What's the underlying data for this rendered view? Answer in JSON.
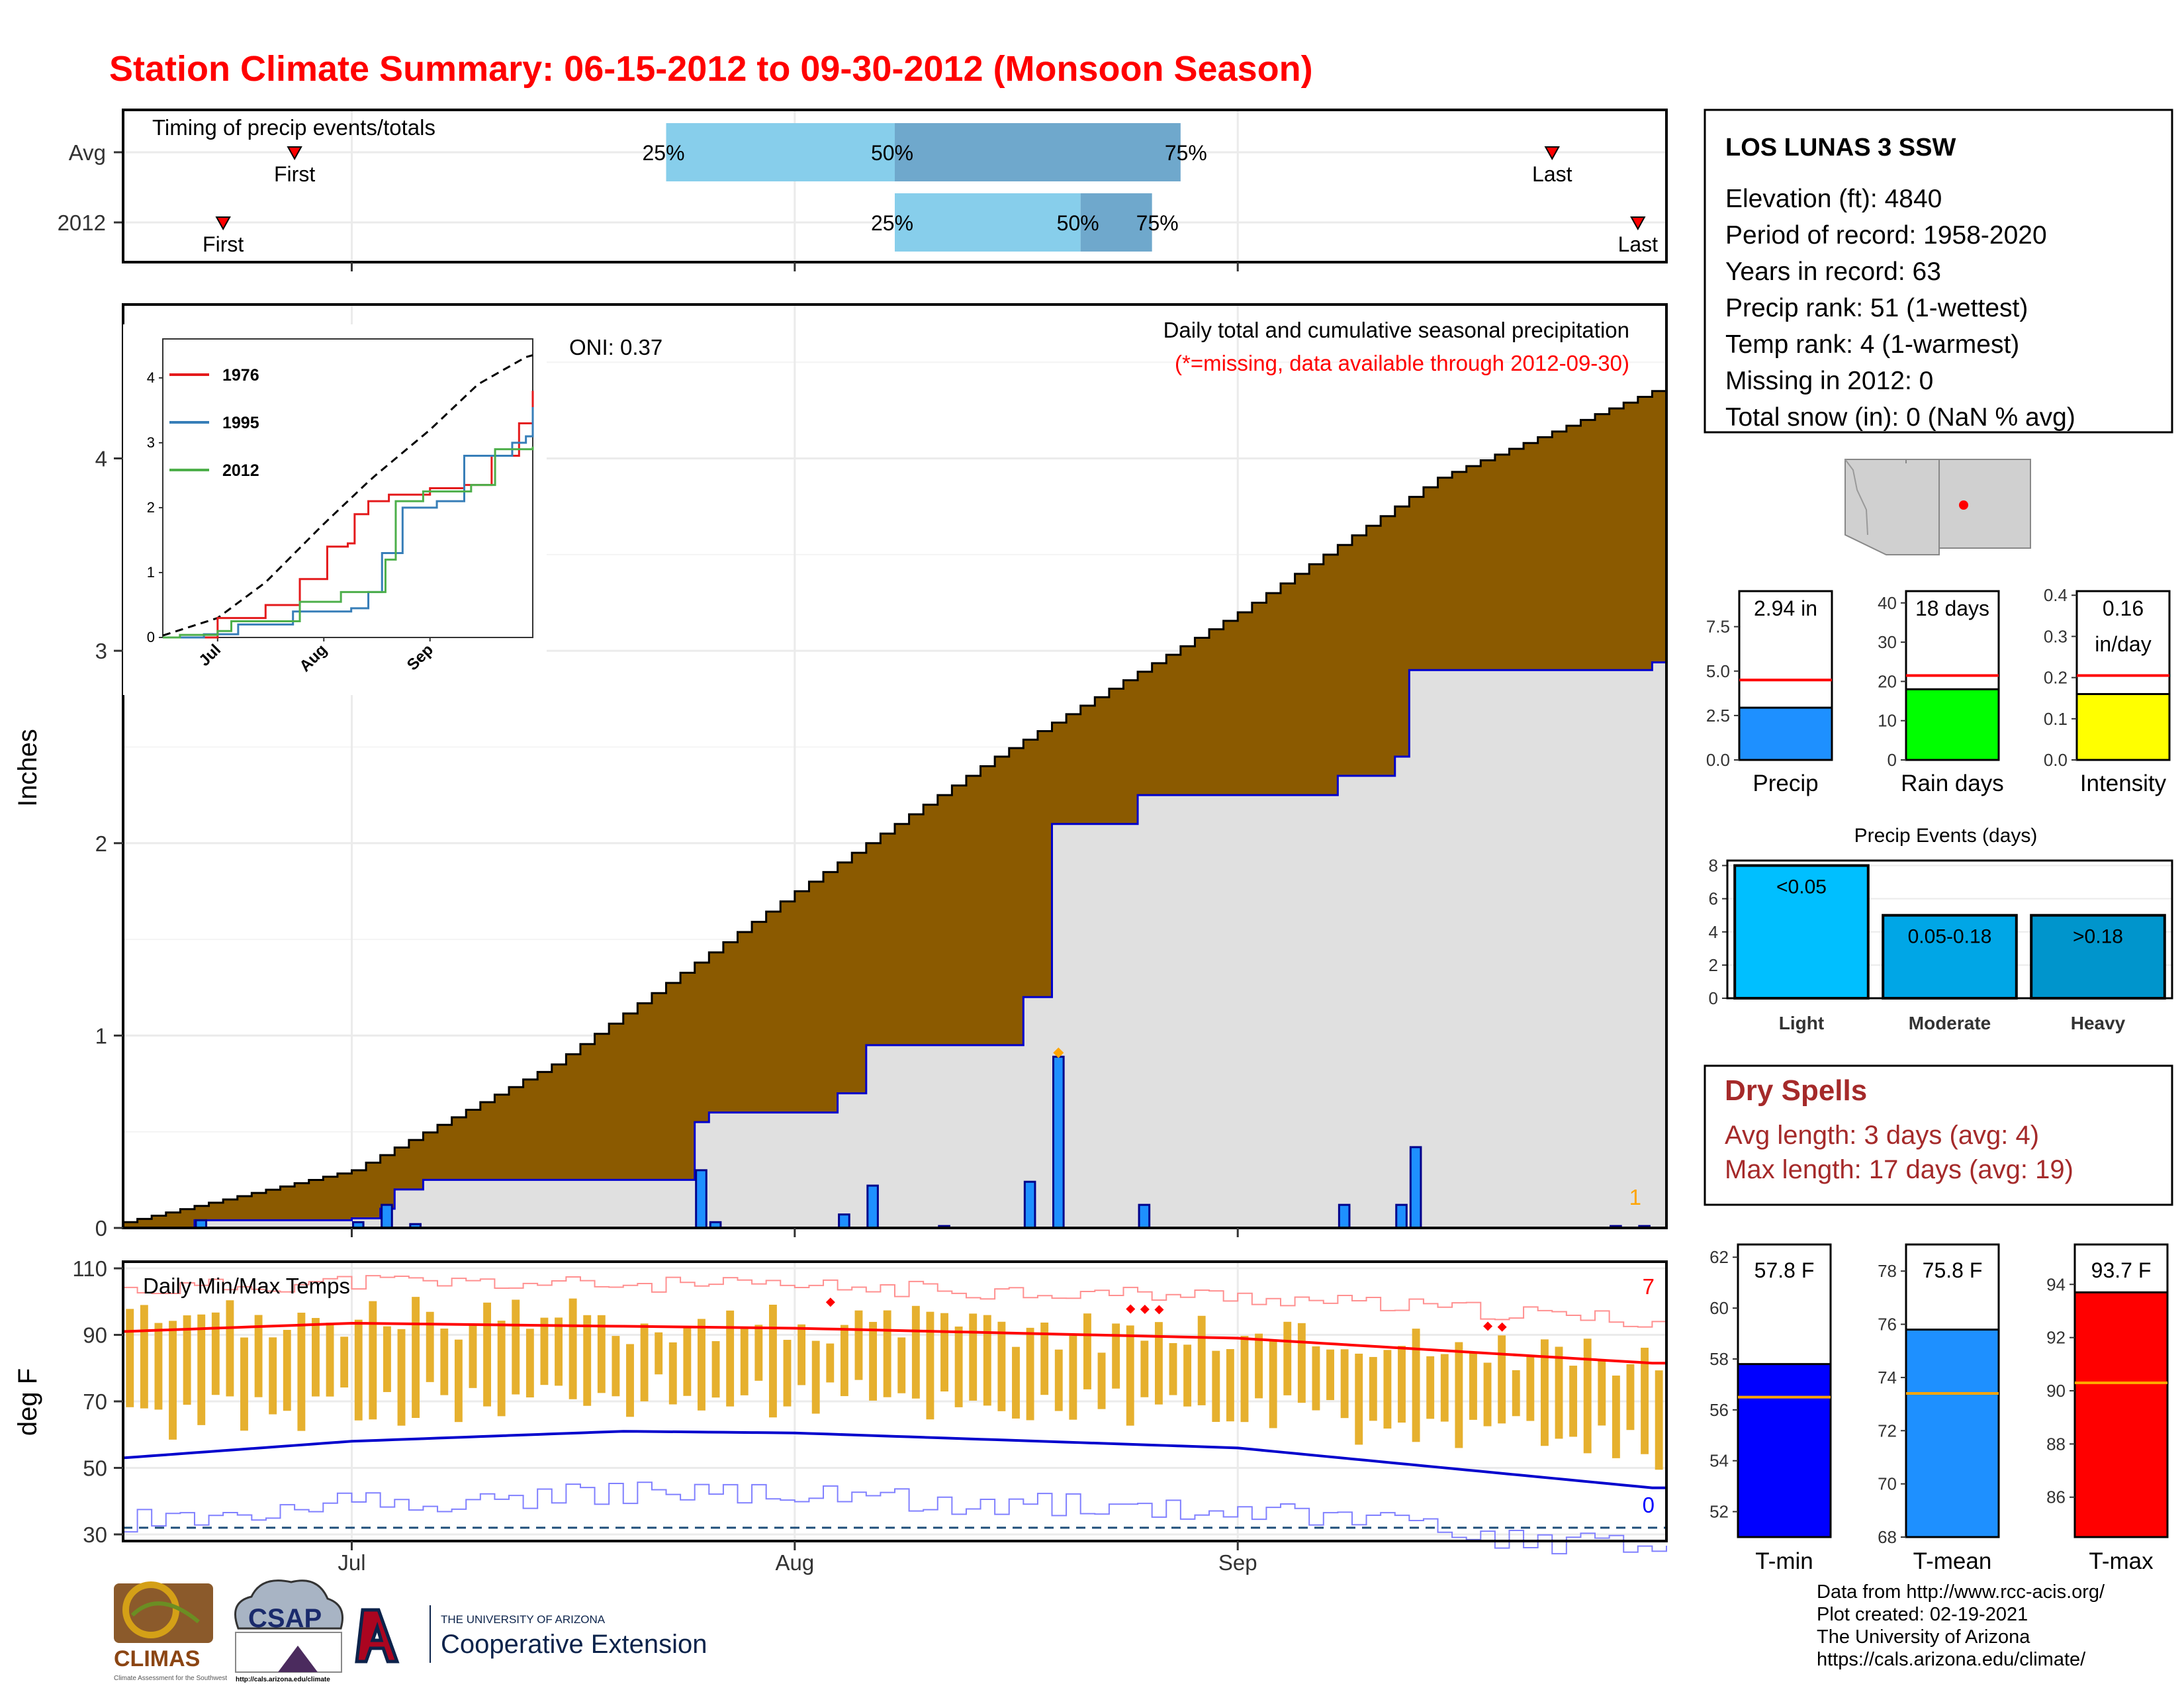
{
  "title": "Station Climate Summary: 06-15-2012 to 09-30-2012 (Monsoon Season)",
  "timing": {
    "label": "Timing of precip events/totals",
    "rows": [
      {
        "name": "Avg",
        "first_day": 12,
        "q25_day": 38,
        "q50_day": 54,
        "q75_day": 74,
        "last_day": 100,
        "first_label": "First",
        "last_label": "Last",
        "q25_label": "25%",
        "q50_label": "50%",
        "q75_label": "75%"
      },
      {
        "name": "2012",
        "first_day": 7,
        "q25_day": 54,
        "q50_day": 67,
        "q75_day": 72,
        "last_day": 106,
        "first_label": "First",
        "last_label": "Last",
        "q25_label": "25%",
        "q50_label": "50%",
        "q75_label": "75%"
      }
    ]
  },
  "month_ticks": [
    {
      "label": "Jul",
      "day": 16
    },
    {
      "label": "Aug",
      "day": 47
    },
    {
      "label": "Sep",
      "day": 78
    }
  ],
  "precip": {
    "ylabel": "Inches",
    "yticks": [
      0,
      1,
      2,
      3,
      4
    ],
    "ymax": 4.8,
    "oni": "ONI: 0.37",
    "caption": "Daily total and cumulative seasonal precipitation",
    "missing_note": "(*=missing, data available through 2012-09-30)",
    "missing_count": "1",
    "inset": {
      "yticks": [
        0,
        1,
        2,
        3,
        4
      ],
      "xticks": [
        "Jul",
        "Aug",
        "Sep"
      ],
      "legend": [
        {
          "name": "1976",
          "color": "#e41a1c"
        },
        {
          "name": "1995",
          "color": "#377eb8"
        },
        {
          "name": "2012",
          "color": "#4daf4a"
        }
      ]
    }
  },
  "temps": {
    "ylabel": "deg F",
    "label": "Daily Min/Max Temps",
    "yticks": [
      30,
      50,
      70,
      90,
      110
    ],
    "record_high_count": "7",
    "record_low_count": "0"
  },
  "station": {
    "name": "LOS LUNAS 3 SSW",
    "lines": [
      "Elevation (ft): 4840",
      "Period of record: 1958-2020",
      "Years in record: 63",
      "Precip rank: 51 (1-wettest)",
      "Temp rank: 4 (1-warmest)",
      "Missing in 2012: 0",
      "Total snow (in): 0 (NaN % avg)"
    ]
  },
  "summary_bars": [
    {
      "name": "Precip",
      "value_label": "2.94 in",
      "value": 2.94,
      "avg": 4.5,
      "yticks": [
        "0.0",
        "2.5",
        "5.0",
        "7.5"
      ],
      "ymax": 9.5,
      "color": "#1e90ff"
    },
    {
      "name": "Rain days",
      "value_label": "18 days",
      "value": 18,
      "avg": 21.5,
      "yticks": [
        "0",
        "10",
        "20",
        "30",
        "40"
      ],
      "ymax": 43,
      "color": "#00ff00"
    },
    {
      "name": "Intensity",
      "value_label": "0.16\nin/day",
      "value": 0.16,
      "avg": 0.205,
      "yticks": [
        "0.0",
        "0.1",
        "0.2",
        "0.3",
        "0.4"
      ],
      "ymax": 0.41,
      "color": "#ffff00"
    }
  ],
  "events": {
    "title": "Precip Events (days)",
    "yticks": [
      0,
      2,
      4,
      6,
      8
    ],
    "bars": [
      {
        "name": "Light",
        "label": "<0.05",
        "value": 8,
        "color": "#00bfff"
      },
      {
        "name": "Moderate",
        "label": "0.05-0.18",
        "value": 5,
        "color": "#00a6e6"
      },
      {
        "name": "Heavy",
        "label": ">0.18",
        "value": 5,
        "color": "#0095cc"
      }
    ]
  },
  "dry_spells": {
    "title": "Dry Spells",
    "avg_line": "Avg length: 3 days (avg: 4)",
    "max_line": "Max length: 17 days (avg: 19)"
  },
  "temp_bars": [
    {
      "name": "T-min",
      "value_label": "57.8 F",
      "value": 57.8,
      "avg": 56.5,
      "yticks": [
        52,
        54,
        56,
        58,
        60,
        62
      ],
      "ymin": 51,
      "ymax": 62.5,
      "color": "#0000ff"
    },
    {
      "name": "T-mean",
      "value_label": "75.8 F",
      "value": 75.8,
      "avg": 73.4,
      "yticks": [
        68,
        70,
        72,
        74,
        76,
        78
      ],
      "ymin": 68,
      "ymax": 79,
      "color": "#1e90ff"
    },
    {
      "name": "T-max",
      "value_label": "93.7 F",
      "value": 93.7,
      "avg": 90.3,
      "yticks": [
        86,
        88,
        90,
        92,
        94
      ],
      "ymin": 84.5,
      "ymax": 95.5,
      "color": "#ff0000"
    }
  ],
  "logos": {
    "climas": "CLIMAS",
    "climas_sub": "Climate Assessment for the Southwest",
    "csap": "CSAP",
    "csap_url": "http://cals.arizona.edu/climate",
    "ua_small": "THE UNIVERSITY OF ARIZONA",
    "ua_big": "Cooperative Extension"
  },
  "footer": {
    "lines": [
      "Data from http://www.rcc-acis.org/",
      "Plot created: 02-19-2021",
      "The University of Arizona",
      "https://cals.arizona.edu/climate/"
    ]
  },
  "chart_data": [
    {
      "type": "area",
      "title": "Daily total and cumulative seasonal precipitation",
      "ylabel": "Inches",
      "ylim": [
        0,
        4.8
      ],
      "x_start": "2012-06-15",
      "x_end": "2012-09-30",
      "series": [
        {
          "name": "Average cumulative",
          "points": [
            [
              "2012-06-15",
              0.03
            ],
            [
              "2012-07-01",
              0.3
            ],
            [
              "2012-07-15",
              0.85
            ],
            [
              "2012-08-01",
              1.75
            ],
            [
              "2012-08-15",
              2.45
            ],
            [
              "2012-09-01",
              3.2
            ],
            [
              "2012-09-15",
              3.9
            ],
            [
              "2012-09-30",
              4.35
            ]
          ]
        },
        {
          "name": "2012 cumulative",
          "points": [
            [
              "2012-06-15",
              0.0
            ],
            [
              "2012-06-20",
              0.04
            ],
            [
              "2012-07-01",
              0.05
            ],
            [
              "2012-07-03",
              0.1
            ],
            [
              "2012-07-04",
              0.2
            ],
            [
              "2012-07-06",
              0.25
            ],
            [
              "2012-07-25",
              0.55
            ],
            [
              "2012-07-26",
              0.6
            ],
            [
              "2012-08-04",
              0.7
            ],
            [
              "2012-08-06",
              0.95
            ],
            [
              "2012-08-17",
              1.2
            ],
            [
              "2012-08-19",
              2.1
            ],
            [
              "2012-08-25",
              2.25
            ],
            [
              "2012-09-08",
              2.35
            ],
            [
              "2012-09-12",
              2.45
            ],
            [
              "2012-09-13",
              2.9
            ],
            [
              "2012-09-30",
              2.94
            ]
          ]
        },
        {
          "name": "2012 daily",
          "points": [
            [
              "2012-06-20",
              0.04
            ],
            [
              "2012-07-01",
              0.03
            ],
            [
              "2012-07-03",
              0.12
            ],
            [
              "2012-07-05",
              0.02
            ],
            [
              "2012-07-25",
              0.3
            ],
            [
              "2012-07-26",
              0.03
            ],
            [
              "2012-08-04",
              0.07
            ],
            [
              "2012-08-06",
              0.22
            ],
            [
              "2012-08-11",
              0.01
            ],
            [
              "2012-08-17",
              0.24
            ],
            [
              "2012-08-19",
              0.89
            ],
            [
              "2012-08-25",
              0.12
            ],
            [
              "2012-09-08",
              0.12
            ],
            [
              "2012-09-12",
              0.12
            ],
            [
              "2012-09-13",
              0.42
            ],
            [
              "2012-09-27",
              0.01
            ],
            [
              "2012-09-29",
              0.01
            ]
          ]
        }
      ]
    },
    {
      "type": "line",
      "title": "Daily Min/Max Temps",
      "ylabel": "deg F",
      "ylim": [
        28,
        112
      ],
      "series": [
        {
          "name": "Avg max",
          "points": [
            [
              "2012-06-15",
              91
            ],
            [
              "2012-07-01",
              93.5
            ],
            [
              "2012-08-01",
              92
            ],
            [
              "2012-09-01",
              89
            ],
            [
              "2012-09-30",
              81.5
            ]
          ]
        },
        {
          "name": "Avg min",
          "points": [
            [
              "2012-06-15",
              53
            ],
            [
              "2012-07-01",
              58
            ],
            [
              "2012-07-20",
              61
            ],
            [
              "2012-08-01",
              60.5
            ],
            [
              "2012-09-01",
              56
            ],
            [
              "2012-09-30",
              44
            ]
          ]
        }
      ]
    },
    {
      "type": "bar",
      "title": "Precip Events (days)",
      "categories": [
        "Light",
        "Moderate",
        "Heavy"
      ],
      "values": [
        8,
        5,
        5
      ]
    }
  ]
}
